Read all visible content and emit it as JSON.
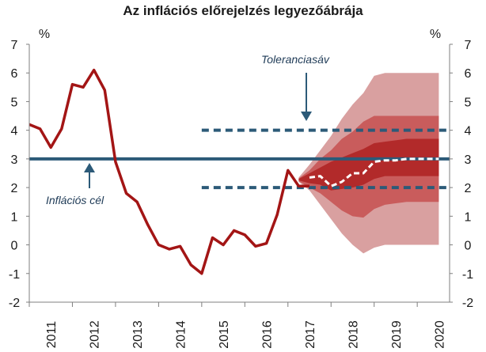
{
  "chart_data": {
    "type": "line",
    "title": "Az inflációs előrejelzés legyezőábrája",
    "y_unit_left": "%",
    "y_unit_right": "%",
    "ylim": [
      -2,
      7
    ],
    "y_ticks": [
      -2,
      -1,
      0,
      1,
      2,
      3,
      4,
      5,
      6,
      7
    ],
    "x_ticks": [
      "2011",
      "2012",
      "2013",
      "2014",
      "2015",
      "2016",
      "2017",
      "2018",
      "2019",
      "2020"
    ],
    "xlim": [
      2011.0,
      2020.75
    ],
    "colors": {
      "inflation": "#a31515",
      "target": "#2c5a78",
      "tolerance": "#2c5a78",
      "fan_outer": "#d9a0a0",
      "fan_mid": "#c95c5c",
      "fan_inner": "#b22a2a",
      "forecast_median": "#ffffff"
    },
    "series": [
      {
        "name": "inflation",
        "x": [
          2011.0,
          2011.25,
          2011.5,
          2011.75,
          2012.0,
          2012.25,
          2012.5,
          2012.75,
          2013.0,
          2013.25,
          2013.5,
          2013.75,
          2014.0,
          2014.25,
          2014.5,
          2014.75,
          2015.0,
          2015.25,
          2015.5,
          2015.75,
          2016.0,
          2016.25,
          2016.5,
          2016.75,
          2017.0,
          2017.25,
          2017.5
        ],
        "y": [
          4.2,
          4.05,
          3.4,
          4.05,
          5.6,
          5.5,
          6.1,
          5.4,
          2.9,
          1.8,
          1.5,
          0.7,
          0.0,
          -0.15,
          -0.05,
          -0.7,
          -1.0,
          0.25,
          0.0,
          0.5,
          0.35,
          -0.05,
          0.05,
          1.05,
          2.6,
          2.05,
          2.05
        ]
      },
      {
        "name": "forecast_median",
        "x": [
          2017.5,
          2017.75,
          2018.0,
          2018.25,
          2018.5,
          2018.75,
          2019.0,
          2019.25,
          2019.5,
          2019.75,
          2020.0,
          2020.25,
          2020.5
        ],
        "y": [
          2.35,
          2.4,
          2.05,
          2.2,
          2.5,
          2.5,
          2.9,
          2.95,
          2.95,
          3.0,
          3.0,
          3.0,
          3.0
        ]
      }
    ],
    "fan_bands": {
      "x": [
        2017.25,
        2017.5,
        2017.75,
        2018.0,
        2018.25,
        2018.5,
        2018.75,
        2019.0,
        2019.25,
        2019.5,
        2019.75,
        2020.0,
        2020.25,
        2020.5
      ],
      "outer_low": [
        2.2,
        1.9,
        1.4,
        0.9,
        0.4,
        0.0,
        -0.3,
        -0.1,
        0.0,
        0.0,
        0.0,
        0.0,
        0.0,
        0.0
      ],
      "outer_high": [
        2.35,
        2.8,
        3.3,
        3.8,
        4.4,
        4.9,
        5.3,
        5.9,
        6.0,
        6.0,
        6.0,
        6.0,
        6.0,
        6.0
      ],
      "mid_low": [
        2.22,
        2.0,
        1.8,
        1.5,
        1.2,
        1.0,
        0.95,
        1.25,
        1.4,
        1.45,
        1.5,
        1.5,
        1.5,
        1.5
      ],
      "mid_high": [
        2.32,
        2.6,
        3.0,
        3.3,
        3.7,
        3.95,
        4.3,
        4.5,
        4.5,
        4.5,
        4.5,
        4.5,
        4.5,
        4.5
      ],
      "inner_low": [
        2.25,
        2.15,
        2.1,
        1.9,
        1.95,
        2.0,
        2.1,
        2.3,
        2.4,
        2.4,
        2.4,
        2.4,
        2.4,
        2.4
      ],
      "inner_high": [
        2.3,
        2.5,
        2.7,
        2.9,
        3.05,
        3.2,
        3.35,
        3.55,
        3.6,
        3.65,
        3.7,
        3.7,
        3.7,
        3.7
      ]
    },
    "target": {
      "y": 3,
      "x_start": 2011.0,
      "x_end": 2020.75
    },
    "tolerance": {
      "low": 2,
      "high": 4,
      "x_start": 2015.0,
      "x_end": 2020.75
    },
    "annotations": {
      "target_label": "Inflációs cél",
      "tolerance_label": "Toleranciasáv"
    },
    "grid": false,
    "legend": "none"
  }
}
